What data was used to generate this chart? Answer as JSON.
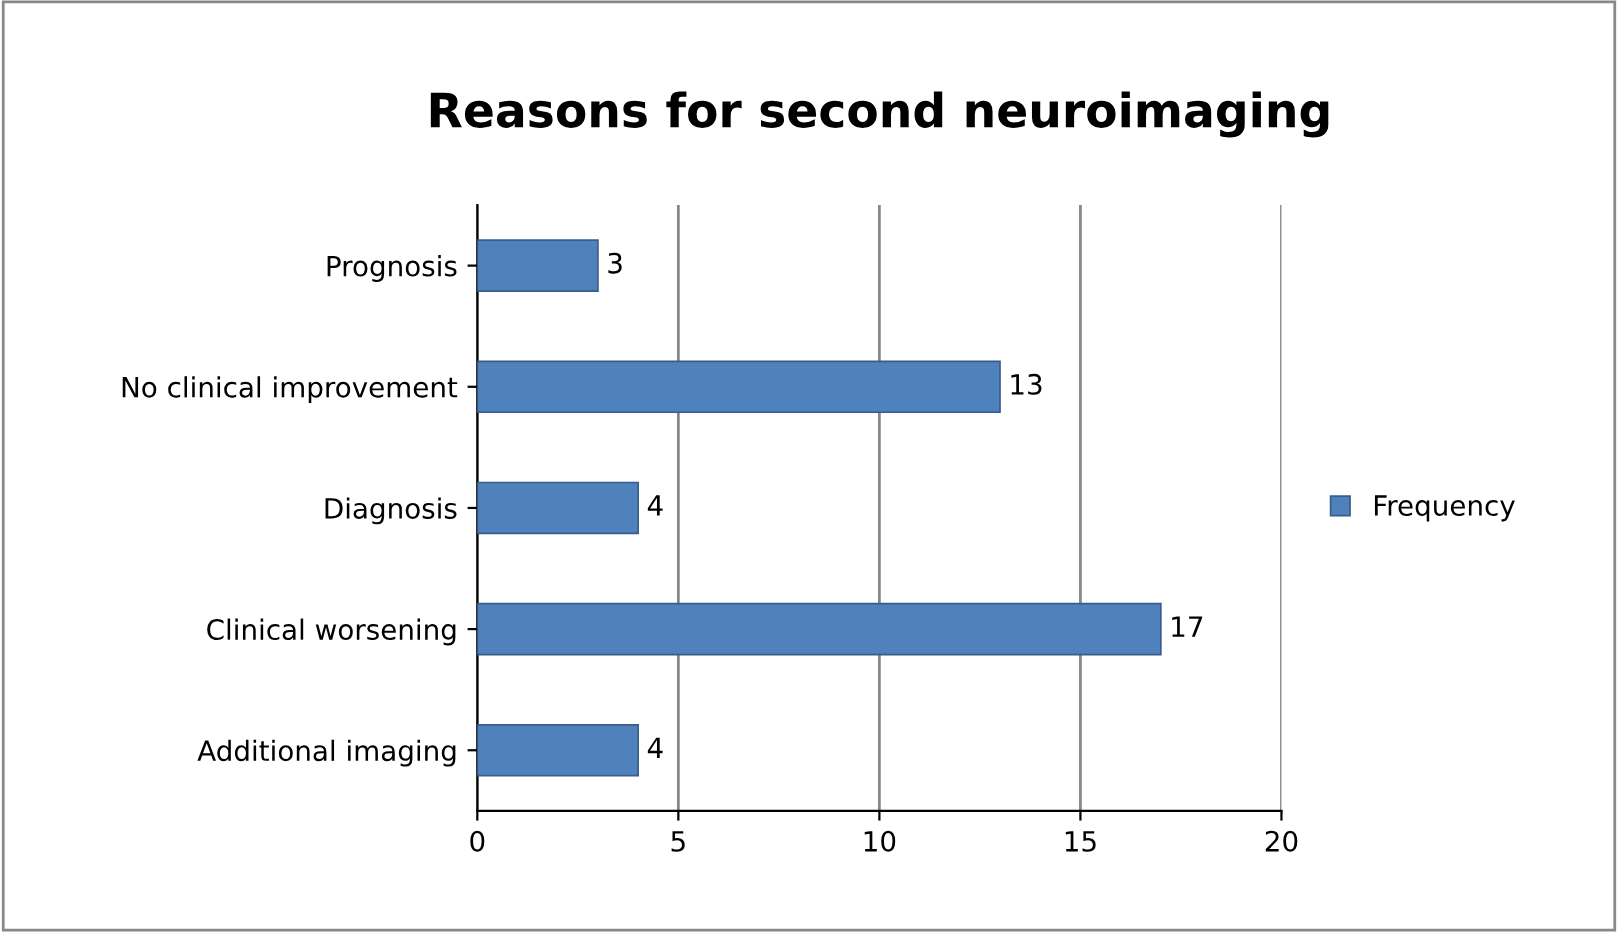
{
  "chart_data": {
    "type": "bar",
    "orientation": "horizontal",
    "title": "Reasons for second neuroimaging",
    "categories": [
      "Prognosis",
      "No clinical improvement",
      "Diagnosis",
      "Clinical worsening",
      "Additional imaging"
    ],
    "series": [
      {
        "name": "Frequency",
        "color": "#4f81bd",
        "values": [
          3,
          13,
          4,
          17,
          4
        ]
      }
    ],
    "xlim": [
      0,
      20
    ],
    "xticks": [
      0,
      5,
      10,
      15,
      20
    ],
    "grid": "x",
    "legend": "right",
    "data_labels": true
  }
}
